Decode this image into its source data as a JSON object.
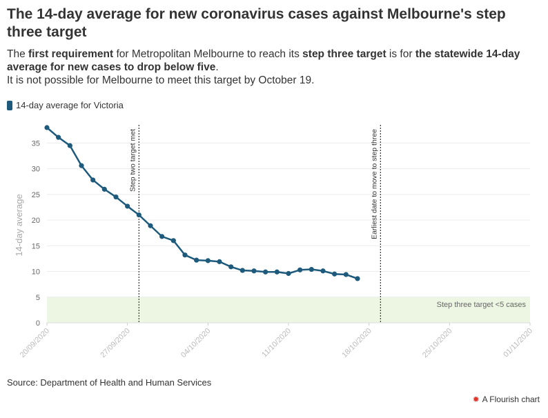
{
  "header": {
    "title": "The 14-day average for new coronavirus cases against Melbourne's step three target",
    "subtitle_lines": [
      {
        "segments": [
          {
            "text": "The ",
            "bold": false
          },
          {
            "text": "first requirement",
            "bold": true
          },
          {
            "text": " for Metropolitan Melbourne to reach its ",
            "bold": false
          },
          {
            "text": "step three target",
            "bold": true
          },
          {
            "text": " is for ",
            "bold": false
          },
          {
            "text": "the statewide 14-day average for new cases to drop below five",
            "bold": true
          },
          {
            "text": ".",
            "bold": false
          }
        ]
      },
      {
        "segments": [
          {
            "text": "It is not possible for Melbourne to meet this target by October 19.",
            "bold": false
          }
        ]
      }
    ]
  },
  "legend": {
    "label": "14-day average for Victoria",
    "color": "#1d5a7c"
  },
  "footer": {
    "source": "Source: Department of Health and Human Services",
    "branding": "A Flourish chart",
    "branding_icon": "flourish-logo-icon"
  },
  "chart_data": {
    "type": "line",
    "title": "",
    "xlabel": "",
    "ylabel": "14-day average",
    "x_axis_type": "date",
    "xlim": [
      "2020-09-20",
      "2020-11-01"
    ],
    "ylim": [
      0,
      38
    ],
    "y_ticks": [
      0,
      5,
      10,
      15,
      20,
      25,
      30,
      35
    ],
    "x_ticks": [
      {
        "date": "2020-09-20",
        "label": "20/09/2020"
      },
      {
        "date": "2020-09-27",
        "label": "27/09/2020"
      },
      {
        "date": "2020-10-04",
        "label": "04/10/2020"
      },
      {
        "date": "2020-10-11",
        "label": "11/10/2020"
      },
      {
        "date": "2020-10-18",
        "label": "18/10/2020"
      },
      {
        "date": "2020-10-25",
        "label": "25/10/2020"
      },
      {
        "date": "2020-11-01",
        "label": "01/11/2020"
      }
    ],
    "grid": true,
    "legend_position": "top-left",
    "series": [
      {
        "name": "14-day average for Victoria",
        "color": "#1d5a7c",
        "points": [
          {
            "x": "2020-09-20",
            "y": 38.0
          },
          {
            "x": "2020-09-21",
            "y": 36.1
          },
          {
            "x": "2020-09-22",
            "y": 34.5
          },
          {
            "x": "2020-09-23",
            "y": 30.6
          },
          {
            "x": "2020-09-24",
            "y": 27.8
          },
          {
            "x": "2020-09-25",
            "y": 26.0
          },
          {
            "x": "2020-09-26",
            "y": 24.5
          },
          {
            "x": "2020-09-27",
            "y": 22.7
          },
          {
            "x": "2020-09-28",
            "y": 21.0
          },
          {
            "x": "2020-09-29",
            "y": 18.9
          },
          {
            "x": "2020-09-30",
            "y": 16.8
          },
          {
            "x": "2020-10-01",
            "y": 16.0
          },
          {
            "x": "2020-10-02",
            "y": 13.2
          },
          {
            "x": "2020-10-03",
            "y": 12.2
          },
          {
            "x": "2020-10-04",
            "y": 12.1
          },
          {
            "x": "2020-10-05",
            "y": 11.9
          },
          {
            "x": "2020-10-06",
            "y": 10.9
          },
          {
            "x": "2020-10-07",
            "y": 10.2
          },
          {
            "x": "2020-10-08",
            "y": 10.1
          },
          {
            "x": "2020-10-09",
            "y": 9.9
          },
          {
            "x": "2020-10-10",
            "y": 9.9
          },
          {
            "x": "2020-10-11",
            "y": 9.6
          },
          {
            "x": "2020-10-12",
            "y": 10.3
          },
          {
            "x": "2020-10-13",
            "y": 10.4
          },
          {
            "x": "2020-10-14",
            "y": 10.1
          },
          {
            "x": "2020-10-15",
            "y": 9.5
          },
          {
            "x": "2020-10-16",
            "y": 9.4
          },
          {
            "x": "2020-10-17",
            "y": 8.6
          }
        ]
      }
    ],
    "reference_lines": [
      {
        "date": "2020-09-28",
        "label": "Step two target met"
      },
      {
        "date": "2020-10-19",
        "label": "Earliest date to move to step three"
      }
    ],
    "reference_band": {
      "y_from": 0,
      "y_to": 5,
      "label": "Step three target <5 cases",
      "color": "#edf6e3"
    }
  }
}
